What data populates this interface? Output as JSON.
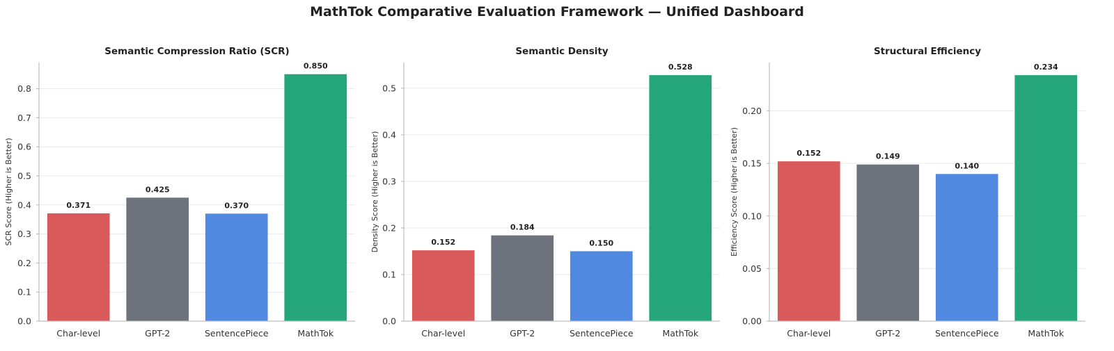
{
  "suptitle": "MathTok Comparative Evaluation Framework — Unified Dashboard",
  "colors": {
    "Char-level": "#d95a5a",
    "GPT-2": "#6e727d",
    "SentencePiece": "#5189e0",
    "MathTok": "#25a67a"
  },
  "chart_data": [
    {
      "type": "bar",
      "title": "Semantic Compression Ratio (SCR)",
      "xlabel": "",
      "ylabel": "SCR Score (Higher is Better)",
      "categories": [
        "Char-level",
        "GPT-2",
        "SentencePiece",
        "MathTok"
      ],
      "values": [
        0.371,
        0.425,
        0.37,
        0.85
      ],
      "value_labels": [
        "0.371",
        "0.425",
        "0.370",
        "0.850"
      ],
      "ylim": [
        0,
        0.89
      ],
      "yticks": [
        0.0,
        0.1,
        0.2,
        0.3,
        0.4,
        0.5,
        0.6,
        0.7,
        0.8
      ],
      "ytick_labels": [
        "0.0",
        "0.1",
        "0.2",
        "0.3",
        "0.4",
        "0.5",
        "0.6",
        "0.7",
        "0.8"
      ],
      "grid": true
    },
    {
      "type": "bar",
      "title": "Semantic Density",
      "xlabel": "",
      "ylabel": "Density Score (Higher is Better)",
      "categories": [
        "Char-level",
        "GPT-2",
        "SentencePiece",
        "MathTok"
      ],
      "values": [
        0.152,
        0.184,
        0.15,
        0.528
      ],
      "value_labels": [
        "0.152",
        "0.184",
        "0.150",
        "0.528"
      ],
      "ylim": [
        0,
        0.555
      ],
      "yticks": [
        0.0,
        0.1,
        0.2,
        0.3,
        0.4,
        0.5
      ],
      "ytick_labels": [
        "0.0",
        "0.1",
        "0.2",
        "0.3",
        "0.4",
        "0.5"
      ],
      "grid": true
    },
    {
      "type": "bar",
      "title": "Structural Efficiency",
      "xlabel": "",
      "ylabel": "Efficiency Score (Higher is Better)",
      "categories": [
        "Char-level",
        "GPT-2",
        "SentencePiece",
        "MathTok"
      ],
      "values": [
        0.152,
        0.149,
        0.14,
        0.234
      ],
      "value_labels": [
        "0.152",
        "0.149",
        "0.140",
        "0.234"
      ],
      "ylim": [
        0,
        0.246
      ],
      "yticks": [
        0.0,
        0.05,
        0.1,
        0.15,
        0.2
      ],
      "ytick_labels": [
        "0.00",
        "0.05",
        "0.10",
        "0.15",
        "0.20"
      ],
      "grid": true
    }
  ]
}
